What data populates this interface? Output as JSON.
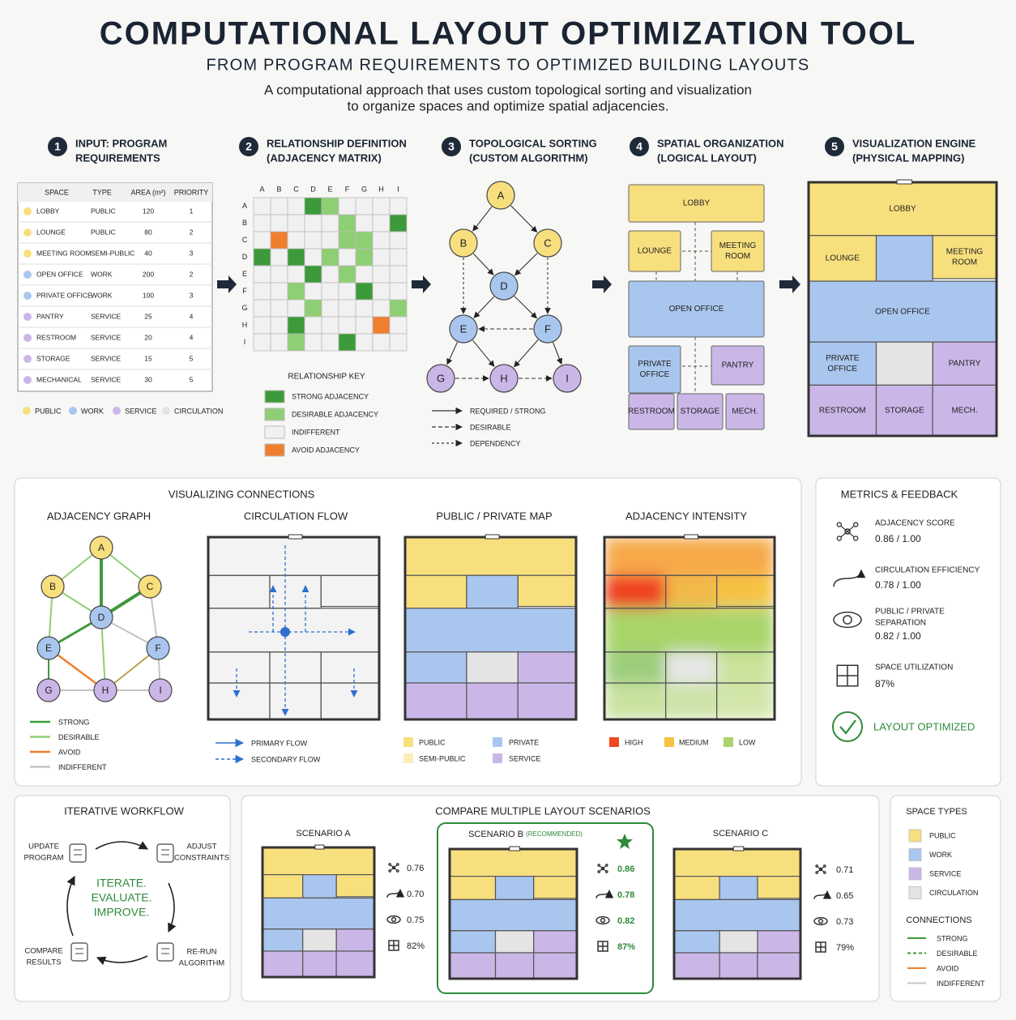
{
  "header": {
    "title": "COMPUTATIONAL LAYOUT OPTIMIZATION TOOL",
    "subtitle": "FROM PROGRAM REQUIREMENTS TO OPTIMIZED BUILDING LAYOUTS",
    "description": [
      "A computational approach that uses custom topological sorting and visualization",
      "to organize spaces and optimize spatial adjacencies."
    ]
  },
  "steps": [
    {
      "number": "1",
      "title": [
        "INPUT: PROGRAM",
        "REQUIREMENTS"
      ]
    },
    {
      "number": "2",
      "title": [
        "RELATIONSHIP DEFINITION",
        "(ADJACENCY MATRIX)"
      ]
    },
    {
      "number": "3",
      "title": [
        "TOPOLOGICAL SORTING",
        "(CUSTOM ALGORITHM)"
      ]
    },
    {
      "number": "4",
      "title": [
        "SPATIAL ORGANIZATION",
        "(LOGICAL LAYOUT)"
      ]
    },
    {
      "number": "5",
      "title": [
        "VISUALIZATION ENGINE",
        "(PHYSICAL MAPPING)"
      ]
    }
  ],
  "program_table": {
    "columns": [
      "SPACE",
      "TYPE",
      "AREA (m²)",
      "PRIORITY"
    ],
    "rows": [
      [
        "LOBBY",
        "PUBLIC",
        "120",
        "1"
      ],
      [
        "LOUNGE",
        "PUBLIC",
        "80",
        "2"
      ],
      [
        "MEETING ROOM",
        "SEMI-PUBLIC",
        "40",
        "3"
      ],
      [
        "OPEN OFFICE",
        "WORK",
        "200",
        "2"
      ],
      [
        "PRIVATE OFFICE",
        "WORK",
        "100",
        "3"
      ],
      [
        "PANTRY",
        "SERVICE",
        "25",
        "4"
      ],
      [
        "RESTROOM",
        "SERVICE",
        "20",
        "4"
      ],
      [
        "STORAGE",
        "SERVICE",
        "15",
        "5"
      ],
      [
        "MECHANICAL",
        "SERVICE",
        "30",
        "5"
      ]
    ]
  },
  "type_legend": [
    "PUBLIC",
    "WORK",
    "SERVICE",
    "CIRCULATION"
  ],
  "adjacency_matrix": {
    "labels": [
      "A",
      "B",
      "C",
      "D",
      "E",
      "F",
      "G",
      "H",
      "I"
    ],
    "key_title": "RELATIONSHIP KEY",
    "key": [
      "STRONG ADJACENCY",
      "DESIRABLE ADJACENCY",
      "INDIFFERENT",
      "AVOID ADJACENCY"
    ]
  },
  "topological_sort": {
    "nodes": [
      "A",
      "B",
      "C",
      "D",
      "E",
      "F",
      "G",
      "H",
      "I"
    ],
    "legend": [
      "REQUIRED / STRONG",
      "DESIRABLE",
      "DEPENDENCY"
    ]
  },
  "logical_layout": {
    "rooms": [
      [
        "LOBBY"
      ],
      [
        "LOUNGE"
      ],
      [
        "MEETING",
        "ROOM"
      ],
      [
        "OPEN OFFICE"
      ],
      [
        "PRIVATE",
        "OFFICE"
      ],
      [
        "PANTRY"
      ],
      [
        "RESTROOM"
      ],
      [
        "STORAGE"
      ],
      [
        "MECH."
      ]
    ]
  },
  "physical_layout": {
    "rooms": [
      [
        "LOBBY"
      ],
      [
        "LOUNGE"
      ],
      [
        "MEETING",
        "ROOM"
      ],
      [
        "OPEN OFFICE"
      ],
      [
        "PRIVATE",
        "OFFICE"
      ],
      [
        "PANTRY"
      ],
      [
        "RESTROOM"
      ],
      [
        "STORAGE"
      ],
      [
        "MECH."
      ]
    ]
  },
  "connections": {
    "title": "VISUALIZING CONNECTIONS",
    "adjacency_graph": {
      "title": "ADJACENCY GRAPH",
      "nodes": [
        "A",
        "B",
        "C",
        "D",
        "E",
        "F",
        "G",
        "H",
        "I"
      ],
      "legend": [
        "STRONG",
        "DESIRABLE",
        "AVOID",
        "INDIFFERENT"
      ]
    },
    "circulation_flow": {
      "title": "CIRCULATION FLOW",
      "legend": [
        "PRIMARY FLOW",
        "SECONDARY FLOW"
      ]
    },
    "public_private_map": {
      "title": "PUBLIC / PRIVATE MAP",
      "legend": [
        "PUBLIC",
        "PRIVATE",
        "SEMI-PUBLIC",
        "SERVICE"
      ]
    },
    "adjacency_intensity": {
      "title": "ADJACENCY INTENSITY",
      "legend": [
        "HIGH",
        "MEDIUM",
        "LOW"
      ]
    }
  },
  "metrics": {
    "title": "METRICS & FEEDBACK",
    "items": [
      {
        "label": [
          "ADJACENCY SCORE"
        ],
        "value": "0.86 / 1.00"
      },
      {
        "label": [
          "CIRCULATION EFFICIENCY"
        ],
        "value": "0.78 / 1.00"
      },
      {
        "label": [
          "PUBLIC / PRIVATE",
          "SEPARATION"
        ],
        "value": "0.82 / 1.00"
      },
      {
        "label": [
          "SPACE UTILIZATION"
        ],
        "value": "87%"
      }
    ],
    "status": "LAYOUT OPTIMIZED"
  },
  "workflow": {
    "title": "ITERATIVE WORKFLOW",
    "steps": [
      [
        "UPDATE",
        "PROGRAM"
      ],
      [
        "ADJUST",
        "CONSTRAINTS"
      ],
      [
        "RE-RUN",
        "ALGORITHM"
      ],
      [
        "COMPARE",
        "RESULTS"
      ]
    ],
    "motto": [
      "ITERATE.",
      "EVALUATE.",
      "IMPROVE."
    ]
  },
  "scenarios": {
    "title": "COMPARE MULTIPLE LAYOUT SCENARIOS",
    "items": [
      {
        "name": "SCENARIO A",
        "metrics": [
          "0.76",
          "0.70",
          "0.75",
          "82%"
        ]
      },
      {
        "name": "SCENARIO B",
        "tag": "(RECOMMENDED)",
        "metrics": [
          "0.86",
          "0.78",
          "0.82",
          "87%"
        ]
      },
      {
        "name": "SCENARIO C",
        "metrics": [
          "0.71",
          "0.65",
          "0.73",
          "79%"
        ]
      }
    ]
  },
  "space_types": {
    "title": "SPACE TYPES",
    "items": [
      "PUBLIC",
      "WORK",
      "SERVICE",
      "CIRCULATION"
    ],
    "connections_title": "CONNECTIONS",
    "connections": [
      "STRONG",
      "DESIRABLE",
      "AVOID",
      "INDIFFERENT"
    ]
  }
}
